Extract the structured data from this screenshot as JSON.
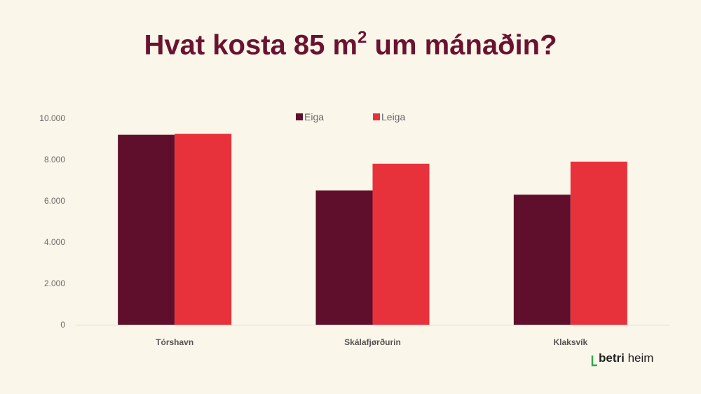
{
  "title": {
    "prefix": "Hvat kosta 85 m",
    "superscript": "2",
    "suffix": " um mánaðin?"
  },
  "colors": {
    "title": "#6a1330",
    "eiga": "#5f0f2b",
    "leiga": "#e8323b",
    "background": "#fbf6ea"
  },
  "logo": {
    "bold": "betri",
    "rest": "heim",
    "accent": "#2fa84f"
  },
  "chart_data": {
    "type": "bar",
    "categories": [
      "Tórshavn",
      "Skálafjørðurin",
      "Klaksvík"
    ],
    "series": [
      {
        "name": "Eiga",
        "values": [
          9200,
          6500,
          6300
        ]
      },
      {
        "name": "Leiga",
        "values": [
          9250,
          7800,
          7900
        ]
      }
    ],
    "ylim": [
      0,
      10000
    ],
    "yticks": [
      0,
      2000,
      4000,
      6000,
      8000,
      10000
    ],
    "ytick_labels": [
      "0",
      "2.000",
      "4.000",
      "6.000",
      "8.000",
      "10.000"
    ],
    "legend": "top-center",
    "grid": false,
    "xlabel": "",
    "ylabel": ""
  }
}
